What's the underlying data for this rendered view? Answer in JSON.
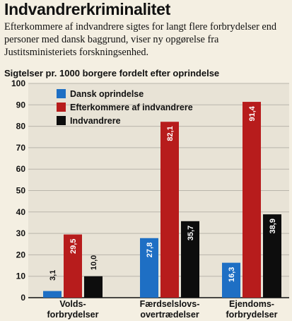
{
  "header": {
    "title": "Indvandrerkriminalitet",
    "intro": "Efterkommere af indvandrere sigtes for langt flere forbrydelser end personer med dansk baggrund, viser ny opgørelse fra Justitsministeriets forskningsenhed."
  },
  "colors": {
    "background": "#f4efe2",
    "plot_background": "#e8e3d6",
    "gridline": "#b9b5ab",
    "dansk": "#1e6fc4",
    "efterkommere": "#b71c1c",
    "indvandrere": "#0d0d0d"
  },
  "chart_data": {
    "type": "bar",
    "title": "Sigtelser pr. 1000 borgere fordelt efter oprindelse",
    "categories": [
      [
        "Volds-",
        "forbrydelser"
      ],
      [
        "Færdselslovs-",
        "overtrædelser"
      ],
      [
        "Ejendoms-",
        "forbrydelser"
      ]
    ],
    "series": [
      {
        "name": "Dansk oprindelse",
        "values": [
          3.1,
          27.8,
          16.3
        ],
        "labels": [
          "3,1",
          "27,8",
          "16,3"
        ]
      },
      {
        "name": "Efterkommere af indvandrere",
        "values": [
          29.5,
          82.1,
          91.4
        ],
        "labels": [
          "29,5",
          "82,1",
          "91,4"
        ]
      },
      {
        "name": "Indvandrere",
        "values": [
          10.0,
          35.7,
          38.9
        ],
        "labels": [
          "10,0",
          "35,7",
          "38,9"
        ]
      }
    ],
    "ylim": [
      0,
      100
    ],
    "yticks": [
      0,
      10,
      20,
      30,
      40,
      50,
      60,
      70,
      80,
      90,
      100
    ],
    "grid": true,
    "legend_position": "top-left"
  }
}
